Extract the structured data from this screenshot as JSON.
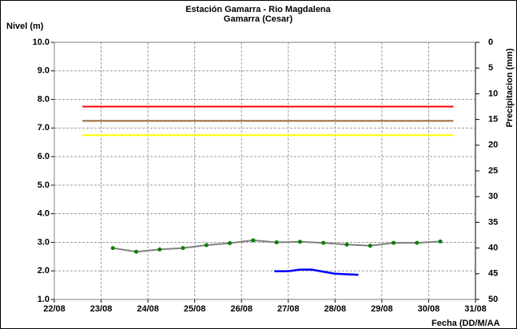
{
  "chart_data": {
    "type": "line",
    "title": "Estación Gamarra - Rio Magdalena",
    "subtitle": "Gamarra (Cesar)",
    "y_label": "Nivel (m)",
    "y2_label": "Precipitacion (mm)",
    "x_label": "Fecha (DD/M/AA",
    "xlim": [
      22,
      31
    ],
    "xticks": [
      {
        "value": 22,
        "label": "22/08"
      },
      {
        "value": 23,
        "label": "23/08"
      },
      {
        "value": 24,
        "label": "24/08"
      },
      {
        "value": 25,
        "label": "25/08"
      },
      {
        "value": 26,
        "label": "26/08"
      },
      {
        "value": 27,
        "label": "27/08"
      },
      {
        "value": 28,
        "label": "28/08"
      },
      {
        "value": 29,
        "label": "29/08"
      },
      {
        "value": 30,
        "label": "30/08"
      },
      {
        "value": 31,
        "label": "31/08"
      }
    ],
    "ylim": [
      1,
      10
    ],
    "yticks": [
      {
        "value": 1,
        "label": "1.0"
      },
      {
        "value": 2,
        "label": "2.0"
      },
      {
        "value": 3,
        "label": "3.0"
      },
      {
        "value": 4,
        "label": "4.0"
      },
      {
        "value": 5,
        "label": "5.0"
      },
      {
        "value": 6,
        "label": "6.0"
      },
      {
        "value": 7,
        "label": "7.0"
      },
      {
        "value": 8,
        "label": "8.0"
      },
      {
        "value": 9,
        "label": "9.0"
      },
      {
        "value": 10,
        "label": "10.0"
      }
    ],
    "y2lim": [
      0,
      50
    ],
    "y2ticks": [
      0,
      5,
      10,
      15,
      20,
      25,
      30,
      35,
      40,
      45,
      50
    ],
    "y2_inverted": true,
    "grid": true,
    "series": [
      {
        "color": "#ff0000",
        "x": [
          22.6,
          30.53
        ],
        "values": [
          7.75,
          7.75
        ]
      },
      {
        "color": "#996633",
        "x": [
          22.6,
          30.53
        ],
        "values": [
          7.25,
          7.25
        ]
      },
      {
        "color": "#ffff00",
        "x": [
          22.6,
          30.53
        ],
        "values": [
          6.75,
          6.75
        ]
      },
      {
        "color": "#808080",
        "marker_color": "#008000",
        "x": [
          23.25,
          23.75,
          24.25,
          24.75,
          25.25,
          25.75,
          26.25,
          26.75,
          27.25,
          27.75,
          28.25,
          28.75,
          29.25,
          29.75,
          30.25
        ],
        "values": [
          2.8,
          2.67,
          2.75,
          2.8,
          2.9,
          2.97,
          3.07,
          3.0,
          3.02,
          2.98,
          2.92,
          2.88,
          2.98,
          2.98,
          3.03
        ]
      },
      {
        "color": "#0000ff",
        "axis": "y2",
        "x": [
          26.7,
          27.0,
          27.25,
          27.5,
          27.75,
          28.0,
          28.25,
          28.5
        ],
        "values": [
          44.5,
          44.5,
          44.2,
          44.2,
          44.6,
          45.0,
          45.1,
          45.2
        ]
      }
    ]
  }
}
